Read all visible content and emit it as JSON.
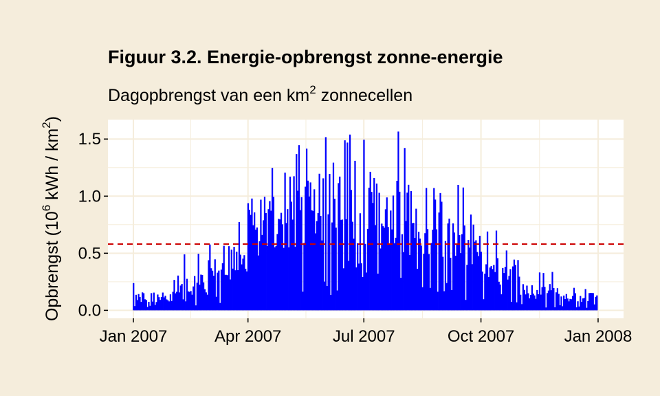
{
  "title": "Figuur 3.2. Energie-opbrengst zonne-energie",
  "subtitle": {
    "prefix": "Dagopbrengst van een km",
    "superscript": "2",
    "suffix": " zonnecellen"
  },
  "ylabel": {
    "part1": "Opbrengst (10",
    "sup1": "6",
    "part2": " kWh / km",
    "sup2": "2",
    "part3": ")"
  },
  "colors": {
    "background": "#f5eddc",
    "panel": "#ffffff",
    "grid": "#f5eddc",
    "bars": "#0000ff",
    "reference_line": "#cc0000"
  },
  "chart_data": {
    "type": "bar",
    "x_start": "2007-01-01",
    "x_end": "2007-12-31",
    "xlim": [
      "2006-12-12",
      "2008-01-21"
    ],
    "ylim": [
      -0.07,
      1.67
    ],
    "x_ticks": [
      "Jan 2007",
      "Apr 2007",
      "Jul 2007",
      "Oct 2007",
      "Jan 2008"
    ],
    "y_ticks": [
      "0.0",
      "0.5",
      "1.0",
      "1.5"
    ],
    "reference_line": {
      "y": 0.58,
      "style": "dashed"
    },
    "monthly_levels": [
      {
        "month": "2007-01",
        "typical_max": 0.15,
        "peak": 0.25
      },
      {
        "month": "2007-02",
        "typical_max": 0.3,
        "peak": 0.5
      },
      {
        "month": "2007-03",
        "typical_max": 0.55,
        "peak": 0.8
      },
      {
        "month": "2007-04",
        "typical_max": 0.95,
        "peak": 1.3
      },
      {
        "month": "2007-05",
        "typical_max": 1.15,
        "peak": 1.47
      },
      {
        "month": "2007-06",
        "typical_max": 1.25,
        "peak": 1.57
      },
      {
        "month": "2007-07",
        "typical_max": 1.2,
        "peak": 1.6
      },
      {
        "month": "2007-08",
        "typical_max": 1.05,
        "peak": 1.45
      },
      {
        "month": "2007-09",
        "typical_max": 0.8,
        "peak": 1.1
      },
      {
        "month": "2007-10",
        "typical_max": 0.5,
        "peak": 0.73
      },
      {
        "month": "2007-11",
        "typical_max": 0.22,
        "peak": 0.35
      },
      {
        "month": "2007-12",
        "typical_max": 0.15,
        "peak": 0.2
      }
    ],
    "grid": true,
    "legend": "none"
  }
}
